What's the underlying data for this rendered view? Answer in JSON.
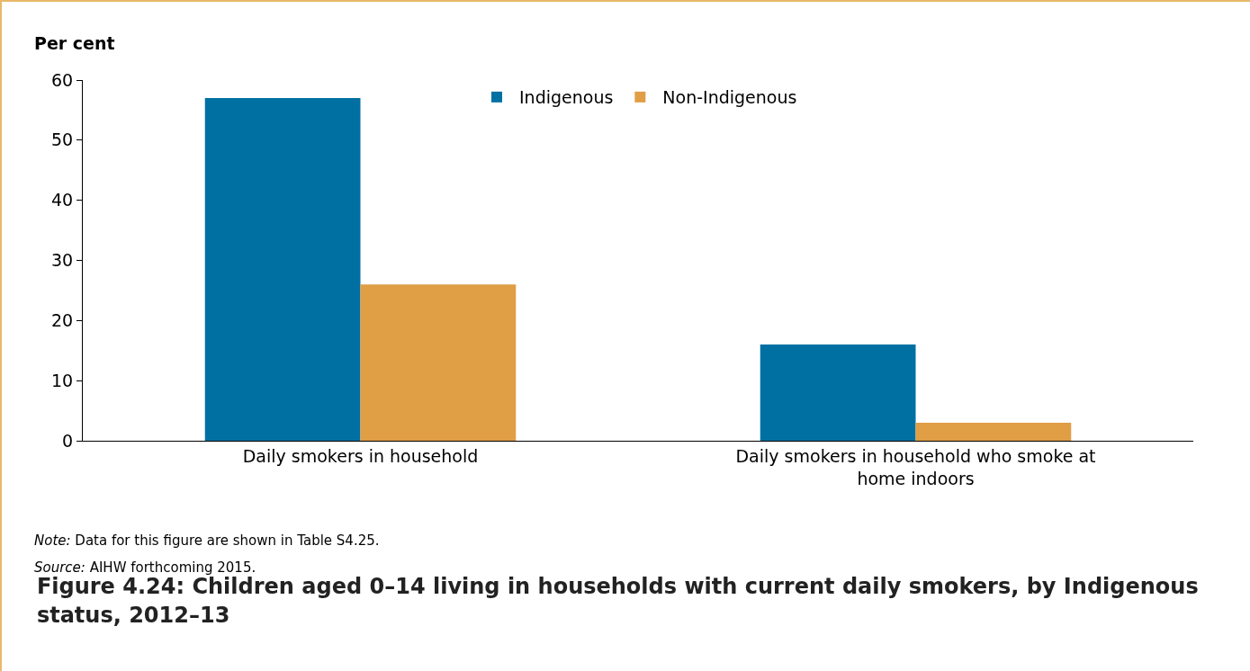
{
  "chart_data": {
    "type": "bar",
    "title": "Figure 4.24: Children aged 0–14 living in households with current daily smokers, by Indigenous status, 2012–13",
    "ylabel": "Per cent",
    "categories": [
      "Daily smokers in household",
      "Daily smokers in household who smoke at home indoors"
    ],
    "series": [
      {
        "name": "Indigenous",
        "color": "#0070a3",
        "values": [
          57,
          16
        ]
      },
      {
        "name": "Non-Indigenous",
        "color": "#e09e45",
        "values": [
          26,
          3
        ]
      }
    ],
    "ylim": [
      0,
      60
    ],
    "yticks": [
      0,
      10,
      20,
      30,
      40,
      50,
      60
    ],
    "grid": false,
    "legend": "top",
    "annotations": [
      "Note: Data for this figure are shown in Table S4.25.",
      "Source: AIHW forthcoming 2015."
    ]
  }
}
